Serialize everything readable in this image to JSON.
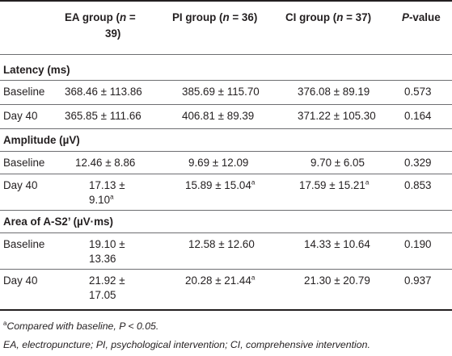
{
  "header": {
    "col1": "EA group (",
    "col1_n": "n",
    "col1_mid": " =",
    "col1_rest": "39)",
    "col2": "PI group (",
    "col2_n": "n",
    "col2_rest": " = 36)",
    "col3": "CI group (",
    "col3_n": "n",
    "col3_rest": " = 37)",
    "col4_p": "P",
    "col4_rest": "-value"
  },
  "sections": {
    "latency": "Latency (ms)",
    "amplitude": "Amplitude (µV)",
    "area": "Area of A-S2’ (µV·ms)"
  },
  "rows": {
    "lat_base": {
      "label": "Baseline",
      "ea": "368.46 ± 113.86",
      "pi": "385.69 ± 115.70",
      "ci": "376.08 ± 89.19",
      "p": "0.573"
    },
    "lat_d40": {
      "label": "Day 40",
      "ea": "365.85 ± 111.66",
      "pi": "406.81 ± 89.39",
      "ci": "371.22 ± 105.30",
      "p": "0.164"
    },
    "amp_base": {
      "label": "Baseline",
      "ea": "12.46 ± 8.86",
      "pi": "9.69 ± 12.09",
      "ci": "9.70 ± 6.05",
      "p": "0.329"
    },
    "amp_d40": {
      "label": "Day 40",
      "ea1": "17.13 ±",
      "ea2": "9.10",
      "pi": "15.89 ± 15.04",
      "ci": "17.59 ± 15.21",
      "p": "0.853"
    },
    "area_base": {
      "label": "Baseline",
      "ea1": "19.10 ±",
      "ea2": "13.36",
      "pi": "12.58 ± 12.60",
      "ci": "14.33 ± 10.64",
      "p": "0.190"
    },
    "area_d40": {
      "label": "Day 40",
      "ea1": "21.92 ±",
      "ea2": "17.05",
      "pi": "20.28 ± 21.44",
      "ci": "21.30 ± 20.79",
      "p": "0.937"
    }
  },
  "sup_marker": "a",
  "footnotes": {
    "note_a": "Compared with baseline, P < 0.05.",
    "abbrev": "EA, electropuncture; PI, psychological intervention; CI, comprehensive intervention."
  }
}
